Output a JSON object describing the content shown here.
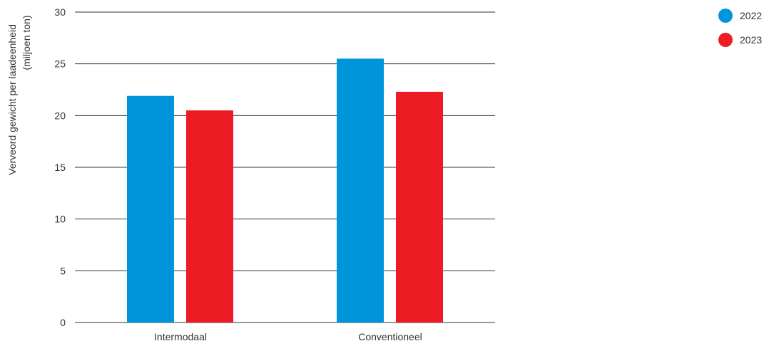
{
  "chart_data": {
    "type": "bar",
    "categories": [
      "Intermodaal",
      "Conventioneel"
    ],
    "series": [
      {
        "name": "2022",
        "values": [
          21.9,
          25.5
        ],
        "color": "#0095da"
      },
      {
        "name": "2023",
        "values": [
          20.5,
          22.3
        ],
        "color": "#ed1c24"
      }
    ],
    "ylabel_line1": "Verveord gewicht per laadeenheid",
    "ylabel_line2": "(miljoen ton)",
    "ylim": [
      0,
      30
    ],
    "yticks": [
      0,
      5,
      10,
      15,
      20,
      25,
      30
    ],
    "grid": true,
    "legend_position": "top-right"
  }
}
